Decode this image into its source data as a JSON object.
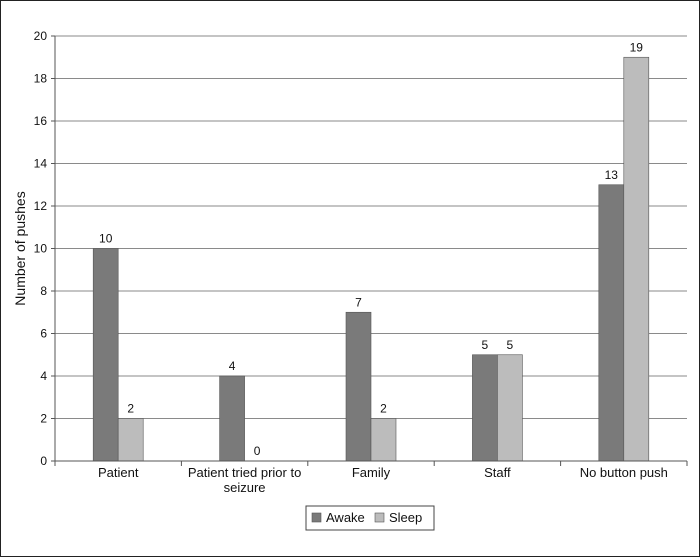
{
  "chart_data": {
    "type": "bar",
    "title": "",
    "xlabel": "",
    "ylabel": "Number of pushes",
    "ylim": [
      0,
      20
    ],
    "yticks": [
      0,
      2,
      4,
      6,
      8,
      10,
      12,
      14,
      16,
      18,
      20
    ],
    "grid": true,
    "legend_position": "bottom",
    "categories": [
      [
        "Patient"
      ],
      [
        "Patient tried prior to",
        "seizure"
      ],
      [
        "Family"
      ],
      [
        "Staff"
      ],
      [
        "No button push"
      ]
    ],
    "series": [
      {
        "name": "Awake",
        "color": "#7a7a7a",
        "values": [
          10,
          4,
          7,
          5,
          13
        ]
      },
      {
        "name": "Sleep",
        "color": "#bcbcbc",
        "values": [
          2,
          0,
          2,
          5,
          19
        ]
      }
    ]
  }
}
